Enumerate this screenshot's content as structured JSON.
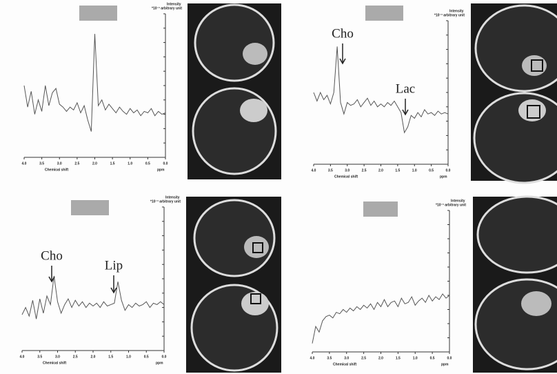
{
  "chart_data": [
    {
      "type": "line",
      "y_label": "Intensity",
      "y_unit": "*10⁻³ arbitrary unit",
      "x_label": "Chemical shift",
      "x_unit": "ppm",
      "annotations": [],
      "x": [
        4.0,
        3.9,
        3.8,
        3.7,
        3.6,
        3.5,
        3.4,
        3.3,
        3.2,
        3.1,
        3.0,
        2.9,
        2.8,
        2.7,
        2.6,
        2.5,
        2.4,
        2.3,
        2.2,
        2.1,
        2.0,
        1.9,
        1.8,
        1.7,
        1.6,
        1.5,
        1.4,
        1.3,
        1.2,
        1.1,
        1.0,
        0.9,
        0.8,
        0.7,
        0.6,
        0.5,
        0.4,
        0.3,
        0.2,
        0.1,
        0.0
      ],
      "series": [
        {
          "color": "#555555",
          "values": [
            5,
            3.5,
            4.6,
            3,
            4,
            3.2,
            5,
            3.6,
            4.5,
            4.8,
            3.7,
            3.5,
            3.2,
            3.5,
            3.3,
            3.8,
            3.1,
            3.6,
            2.6,
            1.8,
            8.6,
            3.6,
            4,
            3.3,
            3.7,
            3.4,
            3.1,
            3.5,
            3.2,
            3,
            3.4,
            3.1,
            3.3,
            2.9,
            3.2,
            3.1,
            3.4,
            2.9,
            3.2,
            3.0,
            3.1
          ]
        }
      ],
      "xlim": [
        4,
        0
      ],
      "ylim": [
        0,
        10
      ],
      "yticks": [
        0,
        1,
        2,
        3,
        4,
        5,
        6,
        7,
        8,
        9,
        10
      ],
      "xticks": [
        {
          "value": 4,
          "label": "4.0"
        },
        {
          "value": 3.5,
          "label": "3.5"
        },
        {
          "value": 3,
          "label": "3.0"
        },
        {
          "value": 2.5,
          "label": "2.5"
        },
        {
          "value": 2,
          "label": "2.0"
        },
        {
          "value": 1.5,
          "label": "1.5"
        },
        {
          "value": 1,
          "label": "1.0"
        },
        {
          "value": 0.5,
          "label": "0.5"
        },
        {
          "value": 0,
          "label": "0.0"
        }
      ]
    },
    {
      "type": "line",
      "y_label": "Intensity",
      "y_unit": "*10⁻³ arbitrary unit",
      "x_label": "Chemical shift",
      "x_unit": "ppm",
      "annotations": [
        "Cho",
        "Lac"
      ],
      "x": [
        4.0,
        3.9,
        3.8,
        3.7,
        3.6,
        3.5,
        3.4,
        3.3,
        3.2,
        3.1,
        3.0,
        2.9,
        2.8,
        2.7,
        2.6,
        2.5,
        2.4,
        2.3,
        2.2,
        2.1,
        2.0,
        1.9,
        1.8,
        1.7,
        1.6,
        1.5,
        1.4,
        1.3,
        1.2,
        1.1,
        1.0,
        0.9,
        0.8,
        0.7,
        0.6,
        0.5,
        0.4,
        0.3,
        0.2,
        0.1,
        0.0
      ],
      "series": [
        {
          "color": "#555555",
          "values": [
            5,
            4.4,
            5,
            4.5,
            4.8,
            4.2,
            5,
            8.2,
            4.3,
            3.5,
            4.3,
            4.1,
            4.2,
            4.5,
            4.0,
            4.3,
            4.6,
            4.1,
            4.4,
            4.0,
            4.2,
            4.0,
            4.3,
            4.1,
            4.4,
            4.0,
            3.6,
            2.2,
            2.6,
            3.4,
            3.2,
            3.6,
            3.3,
            3.8,
            3.5,
            3.6,
            3.4,
            3.7,
            3.5,
            3.6,
            3.5
          ]
        }
      ],
      "xlim": [
        4,
        0
      ],
      "ylim": [
        0,
        10
      ],
      "yticks": [
        0,
        1,
        2,
        3,
        4,
        5,
        6,
        7,
        8,
        9,
        10
      ],
      "xticks": [
        {
          "value": 4,
          "label": "4.0"
        },
        {
          "value": 3.5,
          "label": "3.5"
        },
        {
          "value": 3,
          "label": "3.0"
        },
        {
          "value": 2.5,
          "label": "2.5"
        },
        {
          "value": 2,
          "label": "2.0"
        },
        {
          "value": 1.5,
          "label": "1.5"
        },
        {
          "value": 1,
          "label": "1.0"
        },
        {
          "value": 0.5,
          "label": "0.5"
        },
        {
          "value": 0,
          "label": "0.0"
        }
      ]
    },
    {
      "type": "line",
      "y_label": "Intensity",
      "y_unit": "*10⁻³ arbitrary unit",
      "x_label": "Chemical shift",
      "x_unit": "ppm",
      "annotations": [
        "Cho",
        "Lip"
      ],
      "x": [
        4.0,
        3.9,
        3.8,
        3.7,
        3.6,
        3.5,
        3.4,
        3.3,
        3.2,
        3.1,
        3.0,
        2.9,
        2.8,
        2.7,
        2.6,
        2.5,
        2.4,
        2.3,
        2.2,
        2.1,
        2.0,
        1.9,
        1.8,
        1.7,
        1.6,
        1.5,
        1.4,
        1.3,
        1.2,
        1.1,
        1.0,
        0.9,
        0.8,
        0.7,
        0.6,
        0.5,
        0.4,
        0.3,
        0.2,
        0.1,
        0.0
      ],
      "series": [
        {
          "color": "#555555",
          "values": [
            2.5,
            3,
            2.4,
            3.5,
            2.2,
            3.6,
            2.6,
            3.8,
            3.2,
            5.2,
            3.4,
            2.6,
            3.2,
            3.6,
            3,
            3.5,
            3.1,
            3.4,
            3,
            3.3,
            3.1,
            3.3,
            3.0,
            3.4,
            3.1,
            3.2,
            3.3,
            4.8,
            3.5,
            2.8,
            3.2,
            3.0,
            3.3,
            3.1,
            3.2,
            3.4,
            3.0,
            3.3,
            3.2,
            3.4,
            3.2
          ]
        }
      ],
      "xlim": [
        4,
        0
      ],
      "ylim": [
        0,
        10
      ],
      "yticks": [
        0,
        1,
        2,
        3,
        4,
        5,
        6,
        7,
        8,
        9,
        10
      ],
      "xticks": [
        {
          "value": 4,
          "label": "4.0"
        },
        {
          "value": 3.5,
          "label": "3.5"
        },
        {
          "value": 3,
          "label": "3.0"
        },
        {
          "value": 2.5,
          "label": "2.5"
        },
        {
          "value": 2,
          "label": "2.0"
        },
        {
          "value": 1.5,
          "label": "1.5"
        },
        {
          "value": 1,
          "label": "1.0"
        },
        {
          "value": 0.5,
          "label": "0.5"
        },
        {
          "value": 0,
          "label": "0.0"
        }
      ]
    },
    {
      "type": "line",
      "y_label": "Intensity",
      "y_unit": "*10⁻³ arbitrary unit",
      "x_label": "Chemical shift",
      "x_unit": "ppm",
      "annotations": [],
      "x": [
        4.0,
        3.9,
        3.8,
        3.7,
        3.6,
        3.5,
        3.4,
        3.3,
        3.2,
        3.1,
        3.0,
        2.9,
        2.8,
        2.7,
        2.6,
        2.5,
        2.4,
        2.3,
        2.2,
        2.1,
        2.0,
        1.9,
        1.8,
        1.7,
        1.6,
        1.5,
        1.4,
        1.3,
        1.2,
        1.1,
        1.0,
        0.9,
        0.8,
        0.7,
        0.6,
        0.5,
        0.4,
        0.3,
        0.2,
        0.1,
        0.0
      ],
      "series": [
        {
          "color": "#555555",
          "values": [
            0.6,
            1.8,
            1.4,
            2.2,
            2.5,
            2.6,
            2.4,
            2.8,
            2.7,
            3,
            2.8,
            3.1,
            2.9,
            3.2,
            3.0,
            3.3,
            3.1,
            3.4,
            3.0,
            3.5,
            3.2,
            3.7,
            3.2,
            3.5,
            3.6,
            3.2,
            3.8,
            3.4,
            3.5,
            3.9,
            3.3,
            3.6,
            3.8,
            3.5,
            4,
            3.6,
            3.9,
            3.7,
            4.1,
            3.8,
            4.0
          ]
        }
      ],
      "xlim": [
        4,
        0
      ],
      "ylim": [
        0,
        10
      ],
      "yticks": [
        0,
        1,
        2,
        3,
        4,
        5,
        6,
        7,
        8,
        9,
        10
      ],
      "xticks": [
        {
          "value": 4,
          "label": "4.0"
        },
        {
          "value": 3.5,
          "label": "3.5"
        },
        {
          "value": 3,
          "label": "3.0"
        },
        {
          "value": 2.5,
          "label": "2.5"
        },
        {
          "value": 2,
          "label": "2.0"
        },
        {
          "value": 1.5,
          "label": "1.5"
        },
        {
          "value": 1,
          "label": "1.0"
        },
        {
          "value": 0.5,
          "label": "0.5"
        },
        {
          "value": 0,
          "label": "0.0"
        }
      ]
    }
  ]
}
